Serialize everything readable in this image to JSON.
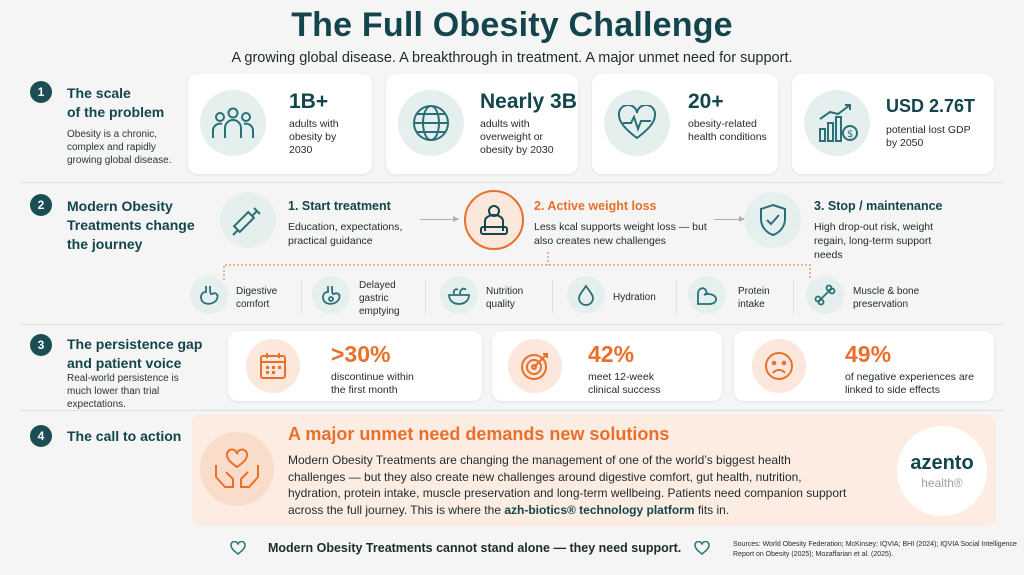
{
  "header": {
    "title": "The Full Obesity Challenge",
    "subtitle": "A growing global disease. A breakthrough in treatment. A major unmet need for support."
  },
  "sections": [
    {
      "number": "1",
      "title_line1": "The scale",
      "title_line2": "of the problem",
      "description": "Obesity is a chronic, complex and rapidly growing global disease."
    },
    {
      "number": "2",
      "title": "Modern Obesity Treatments change the journey"
    },
    {
      "number": "3",
      "title": "The persistence gap and patient voice",
      "description": "Real-world persistence is much lower than trial expectations."
    },
    {
      "number": "4",
      "title": "The call to action"
    }
  ],
  "scale_stats": [
    {
      "icon": "people-group-icon",
      "value": "1B+",
      "label": "adults with obesity by 2030"
    },
    {
      "icon": "globe-icon",
      "value": "Nearly 3B",
      "label": "adults with overweight or obesity by 2030"
    },
    {
      "icon": "heart-pulse-icon",
      "value": "20+",
      "label": "obesity-related health conditions"
    },
    {
      "icon": "chart-money-icon",
      "value": "USD 2.76T",
      "label": "potential lost GDP by 2050"
    }
  ],
  "journey_steps": [
    {
      "icon": "syringe-icon",
      "title": "1. Start treatment",
      "description": "Education, expectations, practical guidance"
    },
    {
      "icon": "person-scale-icon",
      "title": "2. Active weight loss",
      "description": "Less kcal supports weight loss — but also creates new challenges"
    },
    {
      "icon": "shield-check-icon",
      "title": "3. Stop / maintenance",
      "description": "High drop-out risk, weight regain, long-term support needs"
    }
  ],
  "challenges": [
    {
      "icon": "stomach-icon",
      "label": "Digestive comfort"
    },
    {
      "icon": "stomach-slow-icon",
      "label": "Delayed gastric emptying"
    },
    {
      "icon": "salad-bowl-icon",
      "label": "Nutrition quality"
    },
    {
      "icon": "water-drop-icon",
      "label": "Hydration"
    },
    {
      "icon": "muscle-icon",
      "label": "Protein intake"
    },
    {
      "icon": "bone-icon",
      "label": "Muscle & bone preservation"
    }
  ],
  "persistence_stats": [
    {
      "icon": "calendar-icon",
      "value": ">30%",
      "label": "discontinue within the first month"
    },
    {
      "icon": "target-icon",
      "value": "42%",
      "label": "meet 12-week clinical success"
    },
    {
      "icon": "sad-face-icon",
      "value": "49%",
      "label": "of negative experiences are linked to side effects"
    }
  ],
  "cta": {
    "title": "A major unmet need demands new solutions",
    "body": "Modern Obesity Treatments are changing the management of one of the world’s biggest health challenges — but they also create new challenges around digestive comfort, gut health, nutrition, hydration, protein intake, muscle preservation and long-term wellbeing.  Patients need companion support across the full journey. This is where the ",
    "highlight": "azh-biotics® technology platform",
    "body_end": " fits in."
  },
  "logo": {
    "name": "azento",
    "sub": "health®"
  },
  "footer": {
    "tagline": "Modern Obesity Treatments cannot stand alone — they need support.",
    "sources": "Sources: World Obesity Federation; McKinsey; IQVIA; BHI (2024); IQVIA Social Intelligence Report on Obesity (2025); Mozaffarian et al. (2025)."
  },
  "colors": {
    "dark_teal": "#13454c",
    "orange": "#e8702a",
    "peach": "#fcece2",
    "teal_light": "#e5f0ee"
  }
}
